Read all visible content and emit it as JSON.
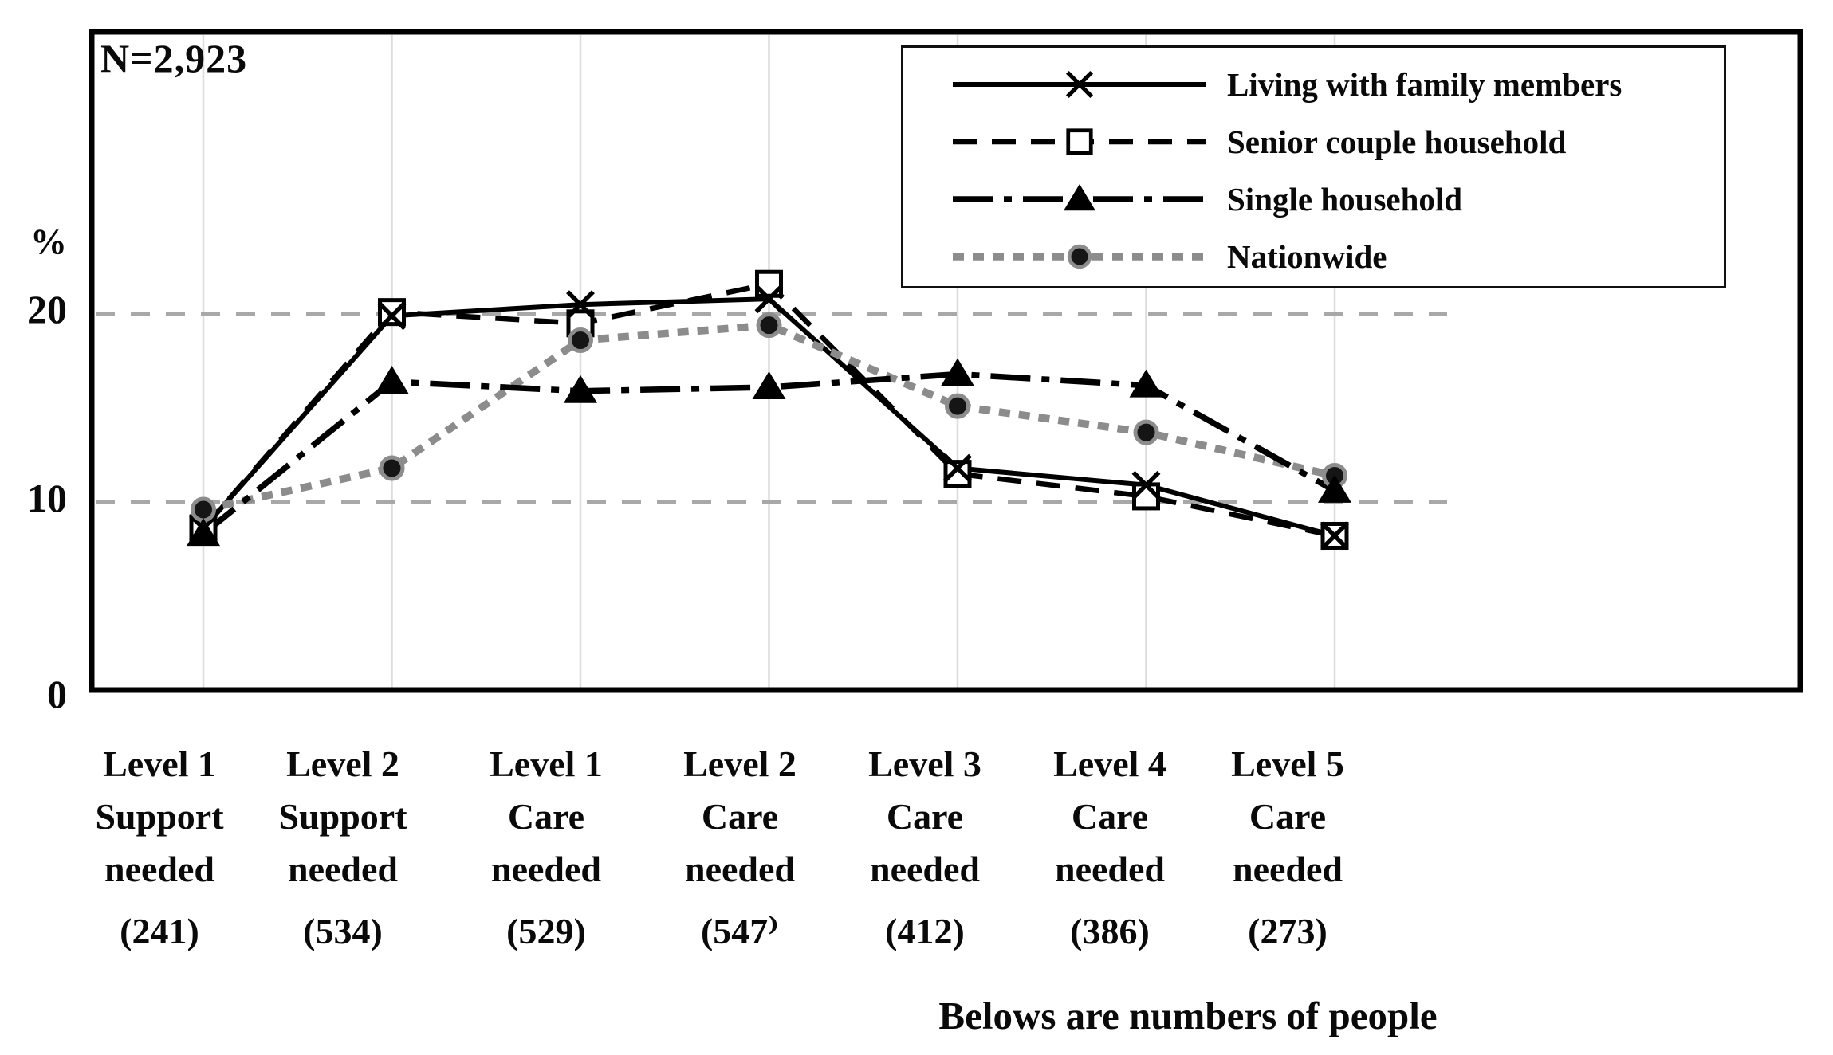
{
  "chart_data": {
    "type": "line",
    "annotation": "N=2,923",
    "ylabel": "%",
    "ytick_labels": [
      "20",
      "10",
      "0"
    ],
    "yticks": [
      20,
      10,
      0
    ],
    "ylim": [
      0,
      35
    ],
    "grid": "horizontal dashed lines at 10 and 20, faint vertical line at each category",
    "legend_position": "top-right",
    "note": "Belows are numbers of people",
    "categories": [
      {
        "lines": [
          "Level 1",
          "Support",
          "needed",
          "(241)"
        ]
      },
      {
        "lines": [
          "Level 2",
          "Support",
          "needed",
          "(534)"
        ]
      },
      {
        "lines": [
          "Level 1",
          "Care",
          "needed",
          "(529)"
        ]
      },
      {
        "lines": [
          "Level 2",
          "Care",
          "needed",
          "(547⁾"
        ]
      },
      {
        "lines": [
          "Level 3",
          "Care",
          "needed",
          "(412)"
        ]
      },
      {
        "lines": [
          "Level 4",
          "Care",
          "needed",
          "(386)"
        ]
      },
      {
        "lines": [
          "Level 5",
          "Care",
          "needed",
          "(273)"
        ]
      }
    ],
    "series": [
      {
        "name": "Living with family members",
        "marker": "x",
        "line": "solid",
        "color": "#000000",
        "values": [
          8.6,
          19.9,
          20.5,
          20.8,
          11.8,
          10.9,
          8.2
        ]
      },
      {
        "name": "Senior couple household",
        "marker": "open-square",
        "line": "dashed",
        "color": "#000000",
        "values": [
          8.6,
          20.1,
          19.5,
          21.6,
          11.5,
          10.3,
          8.2
        ]
      },
      {
        "name": "Single household",
        "marker": "filled-triangle",
        "line": "dash-dot",
        "color": "#000000",
        "values": [
          8.3,
          16.4,
          15.9,
          16.1,
          16.8,
          16.2,
          10.6
        ]
      },
      {
        "name": "Nationwide",
        "marker": "filled-circle",
        "line": "dotted",
        "color": "#8c8c8c",
        "values": [
          9.6,
          11.8,
          18.6,
          19.4,
          15.1,
          13.7,
          11.4
        ]
      }
    ]
  }
}
